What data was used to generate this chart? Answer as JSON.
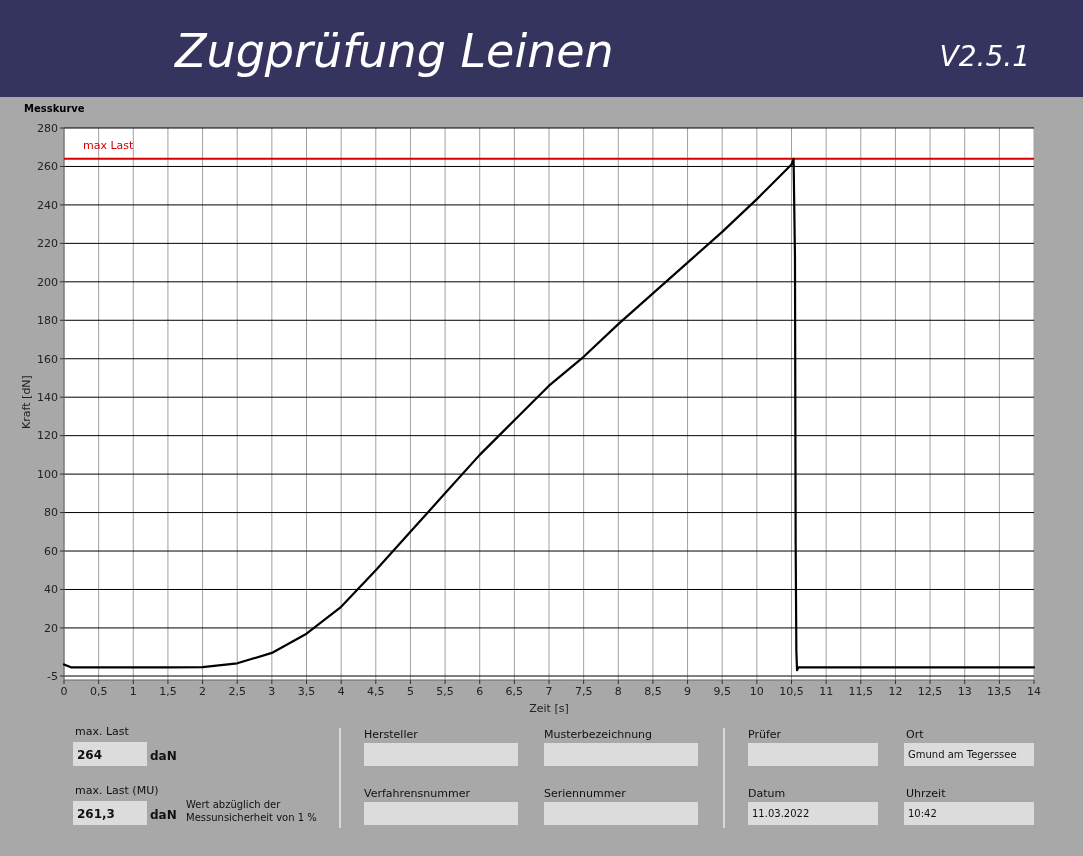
{
  "chart_data": {
    "type": "line",
    "title": "Zugprüfung Leinen",
    "subtitle": "Messkurve",
    "xlabel": "Zeit [s]",
    "ylabel": "Kraft [dN]",
    "x": [
      0,
      0.1,
      0.5,
      1,
      1.5,
      2,
      2.5,
      3,
      3.5,
      4,
      4.5,
      5,
      5.5,
      6,
      6.5,
      7,
      7.5,
      8,
      8.5,
      9,
      9.5,
      10,
      10.5,
      10.53,
      10.55,
      10.56,
      10.57,
      10.58,
      10.6,
      11,
      12,
      13,
      14
    ],
    "series": [
      {
        "color": "#000000",
        "values": [
          1,
          -0.5,
          -0.5,
          -0.5,
          -0.5,
          -0.4,
          1.6,
          7,
          17,
          31,
          50,
          70,
          90,
          110,
          128,
          146,
          161,
          178,
          194,
          210,
          226,
          243,
          261,
          264,
          213,
          64,
          8,
          -2,
          -0.5,
          -0.5,
          -0.5,
          -0.5,
          -0.5
        ]
      }
    ],
    "xlim": [
      0,
      14
    ],
    "ylim": [
      -5,
      280
    ],
    "xticks": [
      0,
      {
        "value": 0.5,
        "label": "0,5"
      },
      1,
      {
        "value": 1.5,
        "label": "1,5"
      },
      2,
      {
        "value": 2.5,
        "label": "2,5"
      },
      3,
      {
        "value": 3.5,
        "label": "3,5"
      },
      4,
      {
        "value": 4.5,
        "label": "4,5"
      },
      5,
      {
        "value": 5.5,
        "label": "5,5"
      },
      6,
      {
        "value": 6.5,
        "label": "6,5"
      },
      7,
      {
        "value": 7.5,
        "label": "7,5"
      },
      8,
      {
        "value": 8.5,
        "label": "8,5"
      },
      9,
      {
        "value": 9.5,
        "label": "9,5"
      },
      10,
      {
        "value": 10.5,
        "label": "10,5"
      },
      11,
      {
        "value": 11.5,
        "label": "11,5"
      },
      12,
      {
        "value": 12.5,
        "label": "12,5"
      },
      13,
      {
        "value": 13.5,
        "label": "13,5"
      },
      14
    ],
    "yticks": [
      -5,
      20,
      40,
      60,
      80,
      100,
      120,
      140,
      160,
      180,
      200,
      220,
      240,
      260,
      280
    ],
    "grid": true,
    "marker": "none",
    "line_style": "solid",
    "ref_lines": [
      {
        "axis": "y",
        "value": 264,
        "label": "max Last",
        "color": "#d40000"
      }
    ],
    "annotations": [
      "V2.5.1",
      "max. Last",
      "264",
      "daN",
      "max. Last (MU)",
      "261,3",
      "daN",
      "Wert abzüglich der Messunsicherheit von 1 %",
      "Hersteller",
      "Musterbezeichnung",
      "Verfahrensnummer",
      "Seriennummer",
      "Prüfer",
      "Ort",
      "Gmund am Tegerssee",
      "Datum",
      "11.03.2022",
      "Uhrzeit",
      "10:42"
    ]
  }
}
